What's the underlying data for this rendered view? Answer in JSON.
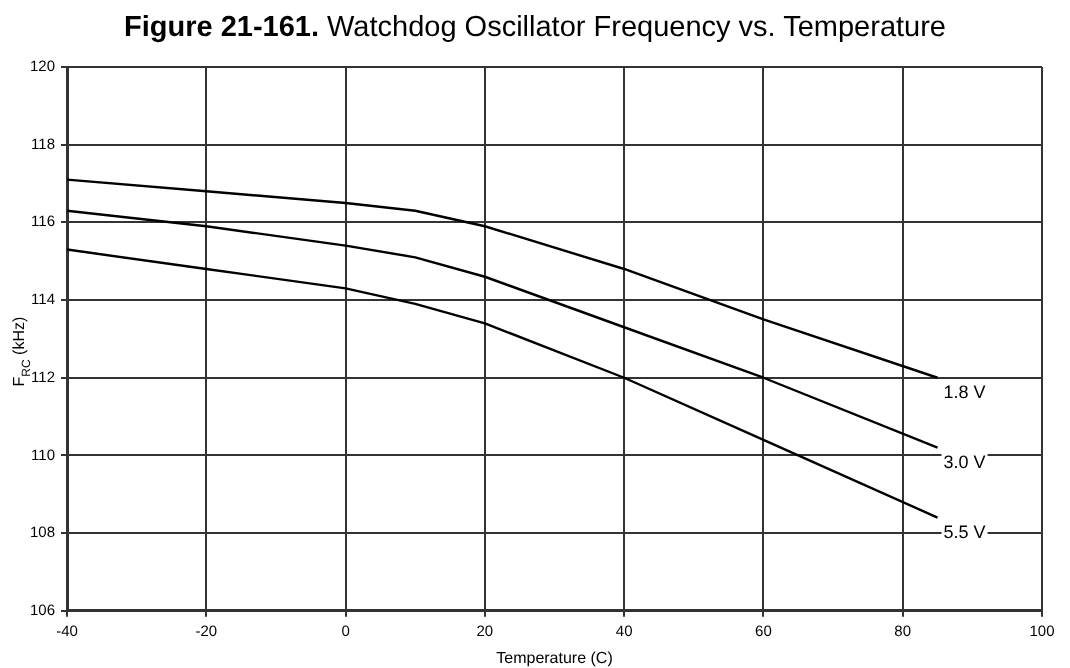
{
  "chart_data": {
    "type": "line",
    "title": "Figure 21-161.  Watchdog Oscillator Frequency vs. Temperature",
    "xlabel": "Temperature (C)",
    "ylabel": "F$_{RC}$ (kHz)",
    "x": [
      -40,
      -20,
      0,
      10,
      20,
      40,
      60,
      85
    ],
    "series": [
      {
        "name": "1.8 V",
        "color": "#000000",
        "values": [
          117.1,
          116.8,
          116.5,
          116.3,
          115.9,
          114.8,
          113.5,
          112.0
        ]
      },
      {
        "name": "3.0 V",
        "color": "#000000",
        "values": [
          116.3,
          115.9,
          115.4,
          115.1,
          114.6,
          113.3,
          112.0,
          110.2
        ]
      },
      {
        "name": "5.5 V",
        "color": "#000000",
        "values": [
          115.3,
          114.8,
          114.3,
          113.9,
          113.4,
          112.0,
          110.4,
          108.4
        ]
      }
    ],
    "xlim": [
      -40,
      100
    ],
    "xticks": [
      -40,
      -20,
      0,
      20,
      40,
      60,
      80,
      100
    ],
    "ylim": [
      106,
      120
    ],
    "yticks": [
      106,
      108,
      110,
      112,
      114,
      116,
      118,
      120
    ],
    "grid": true,
    "legend": false,
    "marker": "none",
    "line_style": "solid"
  }
}
